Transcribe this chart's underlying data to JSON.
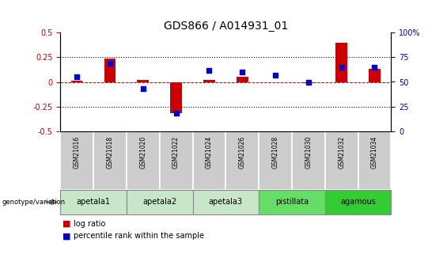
{
  "title": "GDS866 / A014931_01",
  "samples": [
    "GSM21016",
    "GSM21018",
    "GSM21020",
    "GSM21022",
    "GSM21024",
    "GSM21026",
    "GSM21028",
    "GSM21030",
    "GSM21032",
    "GSM21034"
  ],
  "log_ratio": [
    0.01,
    0.24,
    0.02,
    -0.32,
    0.02,
    0.05,
    0.0,
    -0.01,
    0.4,
    0.13
  ],
  "percentile_rank": [
    55,
    69,
    43,
    18,
    62,
    60,
    57,
    50,
    65,
    65
  ],
  "groups": [
    {
      "name": "apetala1",
      "indices": [
        0,
        1
      ],
      "color": "#c8e6c8"
    },
    {
      "name": "apetala2",
      "indices": [
        2,
        3
      ],
      "color": "#c8e6c8"
    },
    {
      "name": "apetala3",
      "indices": [
        4,
        5
      ],
      "color": "#c8e6c8"
    },
    {
      "name": "pistillata",
      "indices": [
        6,
        7
      ],
      "color": "#66dd66"
    },
    {
      "name": "agamous",
      "indices": [
        8,
        9
      ],
      "color": "#33cc33"
    }
  ],
  "ylim_left": [
    -0.5,
    0.5
  ],
  "ylim_right": [
    0,
    100
  ],
  "yticks_left": [
    -0.5,
    -0.25,
    0.0,
    0.25,
    0.5
  ],
  "yticks_right": [
    0,
    25,
    50,
    75,
    100
  ],
  "bar_color": "#cc0000",
  "dot_color": "#0000cc",
  "hline_color": "#cc0000",
  "dotted_color": "black",
  "background_color": "white",
  "bar_width": 0.35,
  "dot_size": 20,
  "left_ylabel_color": "#cc0000",
  "right_ylabel_color": "#0000cc",
  "title_fontsize": 10,
  "tick_fontsize": 7,
  "sample_box_color": "#cccccc",
  "sample_text_fontsize": 5.5,
  "group_text_fontsize": 7,
  "legend_fontsize": 7,
  "genotype_label": "genotype/variation"
}
